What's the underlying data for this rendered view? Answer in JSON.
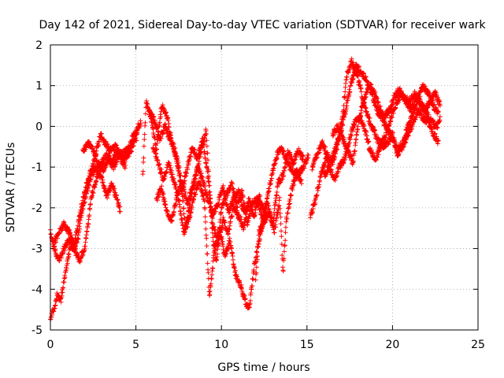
{
  "chart_data": {
    "type": "scatter",
    "title": "Day 142 of 2021, Sidereal Day-to-day VTEC variation (SDTVAR) for receiver wark",
    "xlabel": "GPS time / hours",
    "ylabel": "SDTVAR / TECUs",
    "xlim": [
      0,
      25
    ],
    "ylim": [
      -5,
      2
    ],
    "xticks": [
      "0",
      "5",
      "10",
      "15",
      "20",
      "25"
    ],
    "yticks": [
      "-5",
      "-4",
      "-3",
      "-2",
      "-1",
      "0",
      "1",
      "2"
    ],
    "grid": true,
    "marker": "+",
    "series": [
      {
        "name": "SDTVAR",
        "color": "#ff0000",
        "tracks": [
          [
            [
              0.0,
              -2.6
            ],
            [
              0.2,
              -2.9
            ],
            [
              0.5,
              -2.6
            ],
            [
              0.8,
              -2.4
            ],
            [
              1.1,
              -2.6
            ],
            [
              1.4,
              -2.9
            ],
            [
              1.7,
              -2.2
            ],
            [
              2.0,
              -1.6
            ],
            [
              2.3,
              -1.2
            ],
            [
              2.6,
              -0.8
            ],
            [
              2.9,
              -0.2
            ],
            [
              3.2,
              -0.4
            ],
            [
              3.5,
              -0.6
            ],
            [
              3.8,
              -0.5
            ],
            [
              4.2,
              -0.7
            ],
            [
              4.6,
              -0.5
            ],
            [
              5.0,
              -0.1
            ],
            [
              5.3,
              0.1
            ]
          ],
          [
            [
              0.0,
              -4.7
            ],
            [
              0.2,
              -4.5
            ],
            [
              0.4,
              -4.1
            ],
            [
              0.6,
              -4.3
            ],
            [
              0.8,
              -3.8
            ],
            [
              1.0,
              -3.3
            ],
            [
              1.2,
              -2.9
            ],
            [
              1.4,
              -3.0
            ],
            [
              1.6,
              -2.8
            ],
            [
              1.8,
              -2.2
            ],
            [
              2.1,
              -1.6
            ],
            [
              2.4,
              -1.2
            ],
            [
              2.7,
              -1.0
            ],
            [
              3.0,
              -1.3
            ],
            [
              3.3,
              -1.7
            ],
            [
              3.6,
              -1.4
            ],
            [
              3.9,
              -1.8
            ],
            [
              4.1,
              -2.1
            ]
          ],
          [
            [
              0.2,
              -3.0
            ],
            [
              0.5,
              -3.3
            ],
            [
              0.8,
              -3.0
            ],
            [
              1.1,
              -2.8
            ],
            [
              1.4,
              -3.0
            ],
            [
              1.7,
              -3.3
            ],
            [
              2.0,
              -3.0
            ],
            [
              2.2,
              -2.4
            ],
            [
              2.4,
              -1.7
            ],
            [
              2.7,
              -1.3
            ],
            [
              3.0,
              -0.9
            ],
            [
              3.3,
              -0.7
            ],
            [
              3.6,
              -0.9
            ],
            [
              3.9,
              -0.6
            ],
            [
              4.3,
              -0.8
            ],
            [
              4.7,
              -0.6
            ],
            [
              5.1,
              -0.2
            ]
          ],
          [
            [
              1.9,
              -0.6
            ],
            [
              2.2,
              -0.4
            ],
            [
              2.5,
              -0.6
            ],
            [
              2.8,
              -0.9
            ],
            [
              3.1,
              -1.1
            ],
            [
              3.4,
              -0.8
            ],
            [
              3.7,
              -1.0
            ],
            [
              4.0,
              -0.7
            ],
            [
              4.4,
              -1.0
            ]
          ],
          [
            [
              5.4,
              -1.2
            ],
            [
              5.6,
              0.6
            ],
            [
              5.9,
              0.2
            ],
            [
              6.2,
              -0.6
            ],
            [
              6.5,
              0.5
            ],
            [
              6.8,
              0.3
            ],
            [
              7.1,
              -0.4
            ],
            [
              7.4,
              -0.9
            ],
            [
              7.7,
              -1.6
            ],
            [
              8.0,
              -1.0
            ],
            [
              8.3,
              -0.5
            ],
            [
              8.6,
              -0.8
            ],
            [
              8.9,
              -0.3
            ],
            [
              9.2,
              -1.2
            ],
            [
              9.5,
              -2.4
            ],
            [
              9.8,
              -2.9
            ],
            [
              10.1,
              -2.3
            ],
            [
              10.4,
              -2.6
            ],
            [
              10.7,
              -2.0
            ],
            [
              11.0,
              -2.2
            ],
            [
              11.3,
              -2.5
            ],
            [
              11.6,
              -1.8
            ],
            [
              11.9,
              -2.2
            ],
            [
              12.2,
              -1.7
            ],
            [
              12.5,
              -2.1
            ],
            [
              12.8,
              -1.5
            ],
            [
              13.1,
              -0.9
            ],
            [
              13.4,
              -0.5
            ],
            [
              13.7,
              -0.7
            ],
            [
              14.0,
              -1.0
            ],
            [
              14.4,
              -1.2
            ],
            [
              14.8,
              -1.0
            ],
            [
              15.1,
              -0.7
            ]
          ],
          [
            [
              5.8,
              0.4
            ],
            [
              6.1,
              0.1
            ],
            [
              6.4,
              -0.3
            ],
            [
              6.7,
              0.0
            ],
            [
              7.0,
              -0.3
            ],
            [
              7.3,
              -0.6
            ],
            [
              7.6,
              -1.2
            ],
            [
              7.9,
              -2.5
            ],
            [
              8.2,
              -1.8
            ],
            [
              8.5,
              -1.2
            ],
            [
              8.8,
              -0.6
            ],
            [
              9.1,
              -0.1
            ],
            [
              9.3,
              -1.5
            ],
            [
              9.5,
              -2.8
            ],
            [
              9.7,
              -3.3
            ],
            [
              10.0,
              -2.0
            ],
            [
              10.3,
              -1.7
            ],
            [
              10.6,
              -1.4
            ],
            [
              10.9,
              -2.0
            ],
            [
              11.2,
              -1.6
            ],
            [
              11.5,
              -2.4
            ],
            [
              11.8,
              -1.9
            ],
            [
              12.1,
              -1.8
            ],
            [
              12.4,
              -2.3
            ],
            [
              12.7,
              -1.9
            ],
            [
              13.0,
              -2.4
            ],
            [
              13.3,
              -1.4
            ],
            [
              13.6,
              -1.2
            ],
            [
              13.9,
              -0.6
            ],
            [
              14.2,
              -0.9
            ],
            [
              14.5,
              -0.6
            ],
            [
              14.8,
              -0.8
            ]
          ],
          [
            [
              6.0,
              -0.5
            ],
            [
              6.3,
              -0.9
            ],
            [
              6.6,
              -1.3
            ],
            [
              6.9,
              -0.9
            ],
            [
              7.2,
              -1.3
            ],
            [
              7.5,
              -1.8
            ],
            [
              7.8,
              -2.6
            ],
            [
              8.1,
              -2.3
            ],
            [
              8.4,
              -1.7
            ],
            [
              8.7,
              -1.4
            ],
            [
              9.0,
              -1.8
            ],
            [
              9.3,
              -4.2
            ],
            [
              9.6,
              -3.0
            ],
            [
              9.9,
              -2.5
            ],
            [
              10.2,
              -3.2
            ],
            [
              10.5,
              -2.8
            ],
            [
              10.8,
              -3.6
            ],
            [
              11.1,
              -3.9
            ],
            [
              11.4,
              -4.3
            ],
            [
              11.6,
              -4.5
            ],
            [
              11.9,
              -3.5
            ],
            [
              12.1,
              -3.0
            ],
            [
              12.4,
              -2.4
            ],
            [
              12.7,
              -2.2
            ]
          ],
          [
            [
              6.2,
              -1.8
            ],
            [
              6.5,
              -1.5
            ],
            [
              6.8,
              -2.1
            ],
            [
              7.1,
              -2.3
            ],
            [
              7.4,
              -1.7
            ],
            [
              7.7,
              -1.4
            ],
            [
              8.0,
              -1.9
            ],
            [
              8.3,
              -1.5
            ],
            [
              8.6,
              -1.0
            ],
            [
              8.9,
              -1.3
            ],
            [
              9.2,
              -1.8
            ],
            [
              9.5,
              -2.2
            ],
            [
              9.8,
              -1.9
            ],
            [
              10.1,
              -1.5
            ],
            [
              10.4,
              -2.1
            ],
            [
              10.7,
              -1.8
            ],
            [
              11.0,
              -1.6
            ],
            [
              11.3,
              -2.1
            ],
            [
              11.6,
              -1.9
            ]
          ],
          [
            [
              12.0,
              -3.8
            ],
            [
              12.2,
              -2.6
            ],
            [
              12.5,
              -2.3
            ],
            [
              12.8,
              -2.1
            ],
            [
              13.1,
              -2.6
            ],
            [
              13.4,
              -1.8
            ],
            [
              13.6,
              -3.6
            ],
            [
              13.8,
              -2.3
            ],
            [
              14.1,
              -1.6
            ],
            [
              14.4,
              -1.1
            ],
            [
              14.7,
              -1.4
            ]
          ],
          [
            [
              15.2,
              -2.2
            ],
            [
              15.5,
              -1.8
            ],
            [
              15.8,
              -1.2
            ],
            [
              16.1,
              -0.8
            ],
            [
              16.4,
              -0.9
            ],
            [
              16.7,
              -0.5
            ],
            [
              17.0,
              -0.1
            ],
            [
              17.3,
              0.5
            ],
            [
              17.6,
              1.1
            ],
            [
              17.9,
              1.5
            ],
            [
              18.2,
              1.3
            ],
            [
              18.5,
              1.1
            ],
            [
              18.8,
              0.8
            ],
            [
              19.1,
              0.4
            ],
            [
              19.4,
              0.2
            ],
            [
              19.7,
              -0.1
            ],
            [
              20.0,
              -0.3
            ],
            [
              20.3,
              -0.6
            ],
            [
              20.6,
              -0.4
            ],
            [
              20.9,
              0.0
            ],
            [
              21.2,
              0.3
            ],
            [
              21.5,
              0.7
            ],
            [
              21.8,
              1.0
            ],
            [
              22.1,
              0.8
            ],
            [
              22.4,
              0.5
            ],
            [
              22.7,
              0.3
            ]
          ],
          [
            [
              15.3,
              -1.0
            ],
            [
              15.6,
              -0.7
            ],
            [
              15.9,
              -0.4
            ],
            [
              16.2,
              -0.7
            ],
            [
              16.5,
              -0.9
            ],
            [
              16.8,
              -0.4
            ],
            [
              17.1,
              0.3
            ],
            [
              17.3,
              1.2
            ],
            [
              17.6,
              1.6
            ],
            [
              17.9,
              1.3
            ],
            [
              18.2,
              0.8
            ],
            [
              18.5,
              0.3
            ],
            [
              18.8,
              0.0
            ],
            [
              19.1,
              -0.3
            ],
            [
              19.4,
              -0.5
            ],
            [
              19.7,
              -0.4
            ],
            [
              20.0,
              -0.2
            ],
            [
              20.3,
              -0.7
            ],
            [
              20.6,
              -0.5
            ],
            [
              20.9,
              -0.2
            ],
            [
              21.2,
              0.1
            ],
            [
              21.5,
              0.4
            ],
            [
              21.8,
              0.2
            ],
            [
              22.1,
              0.1
            ],
            [
              22.4,
              -0.2
            ],
            [
              22.7,
              -0.4
            ]
          ],
          [
            [
              16.0,
              -1.2
            ],
            [
              16.3,
              -1.0
            ],
            [
              16.6,
              -1.3
            ],
            [
              16.9,
              -1.0
            ],
            [
              17.2,
              -0.8
            ],
            [
              17.5,
              -0.3
            ],
            [
              17.8,
              0.1
            ],
            [
              18.1,
              0.2
            ],
            [
              18.4,
              -0.1
            ],
            [
              18.7,
              -0.6
            ],
            [
              19.0,
              -0.8
            ],
            [
              19.3,
              -0.5
            ],
            [
              19.6,
              -0.2
            ],
            [
              19.9,
              0.2
            ],
            [
              20.2,
              0.5
            ],
            [
              20.5,
              0.8
            ],
            [
              20.8,
              0.6
            ],
            [
              21.1,
              0.4
            ],
            [
              21.4,
              0.7
            ],
            [
              21.7,
              0.5
            ],
            [
              22.0,
              0.3
            ],
            [
              22.3,
              0.1
            ],
            [
              22.6,
              0.0
            ],
            [
              22.8,
              0.2
            ]
          ],
          [
            [
              16.5,
              -0.2
            ],
            [
              16.8,
              0.0
            ],
            [
              17.1,
              -0.3
            ],
            [
              17.4,
              -0.6
            ],
            [
              17.7,
              -0.9
            ],
            [
              18.0,
              0.1
            ],
            [
              18.3,
              0.6
            ],
            [
              18.6,
              1.0
            ],
            [
              18.9,
              0.9
            ],
            [
              19.2,
              0.5
            ],
            [
              19.5,
              0.2
            ],
            [
              19.8,
              0.4
            ],
            [
              20.1,
              0.7
            ],
            [
              20.4,
              0.9
            ],
            [
              20.7,
              0.7
            ],
            [
              21.0,
              0.6
            ],
            [
              21.3,
              0.8
            ],
            [
              21.6,
              0.6
            ],
            [
              21.9,
              0.4
            ],
            [
              22.2,
              0.6
            ],
            [
              22.5,
              0.8
            ],
            [
              22.8,
              0.5
            ]
          ]
        ]
      }
    ]
  }
}
